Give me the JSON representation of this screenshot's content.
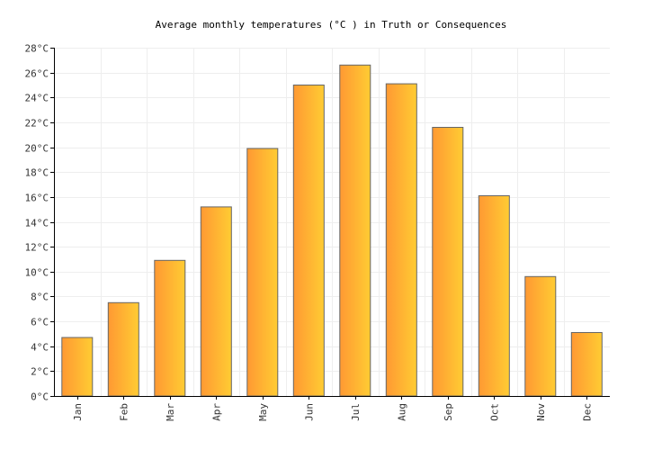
{
  "chart_data": {
    "type": "bar",
    "title": "Average monthly temperatures (°C ) in Truth or Consequences",
    "categories": [
      "Jan",
      "Feb",
      "Mar",
      "Apr",
      "May",
      "Jun",
      "Jul",
      "Aug",
      "Sep",
      "Oct",
      "Nov",
      "Dec"
    ],
    "values": [
      4.7,
      7.5,
      10.9,
      15.2,
      19.9,
      25.0,
      26.6,
      25.1,
      21.6,
      16.1,
      9.6,
      5.1
    ],
    "ylim": [
      0,
      28
    ],
    "ytick_step": 2,
    "ytick_labels": [
      "0°C",
      "2°C",
      "4°C",
      "6°C",
      "8°C",
      "10°C",
      "12°C",
      "14°C",
      "16°C",
      "18°C",
      "20°C",
      "22°C",
      "24°C",
      "26°C",
      "28°C"
    ],
    "xlabel": "",
    "ylabel": "",
    "grid": true,
    "legend": "none",
    "colors": {
      "bar_left": "#FF9933",
      "bar_right": "#FFCC33",
      "bar_stroke": "#666666",
      "grid": "#eeeeee",
      "axis": "#000000"
    }
  }
}
